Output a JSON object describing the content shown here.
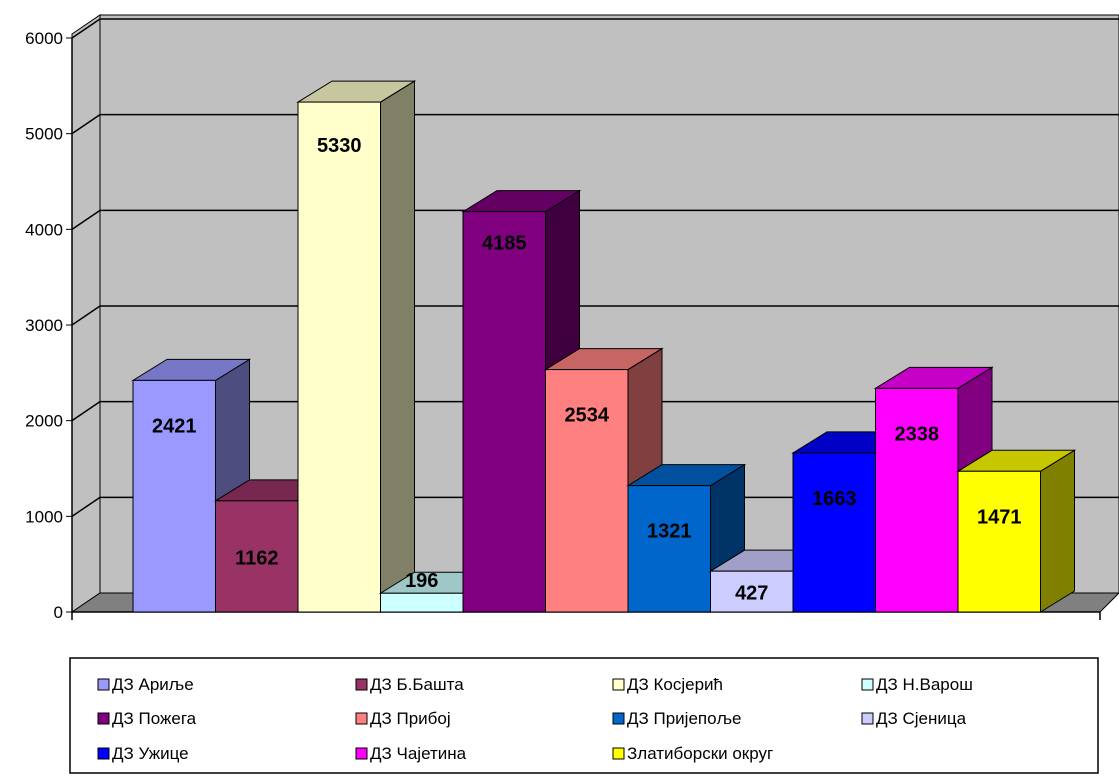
{
  "chart_data": {
    "type": "bar",
    "title": "",
    "xlabel": "",
    "ylabel": "",
    "ylim": [
      0,
      6000
    ],
    "yticks": [
      0,
      1000,
      2000,
      3000,
      4000,
      5000,
      6000
    ],
    "grid": true,
    "three_d": true,
    "legend_position": "bottom",
    "series": [
      {
        "name": "ДЗ Ариље",
        "value": 2421,
        "color": "#9999ff"
      },
      {
        "name": "ДЗ Б.Башта",
        "value": 1162,
        "color": "#993366"
      },
      {
        "name": "ДЗ Косјерић",
        "value": 5330,
        "color": "#ffffcc"
      },
      {
        "name": "ДЗ Н.Варош",
        "value": 196,
        "color": "#ccffff"
      },
      {
        "name": "ДЗ Пожега",
        "value": 4185,
        "color": "#800080"
      },
      {
        "name": "ДЗ Прибој",
        "value": 2534,
        "color": "#ff8080"
      },
      {
        "name": "ДЗ Пријепоље",
        "value": 1321,
        "color": "#0066cc"
      },
      {
        "name": "ДЗ Сјеница",
        "value": 427,
        "color": "#ccccff"
      },
      {
        "name": "ДЗ Ужице",
        "value": 1663,
        "color": "#0000ff"
      },
      {
        "name": "ДЗ Чајетина",
        "value": 2338,
        "color": "#ff00ff"
      },
      {
        "name": "Златиборски округ",
        "value": 1471,
        "color": "#ffff00"
      }
    ]
  },
  "colors": {
    "wall": "#c0c0c0",
    "floor": "#808080",
    "grid": "#000000"
  }
}
